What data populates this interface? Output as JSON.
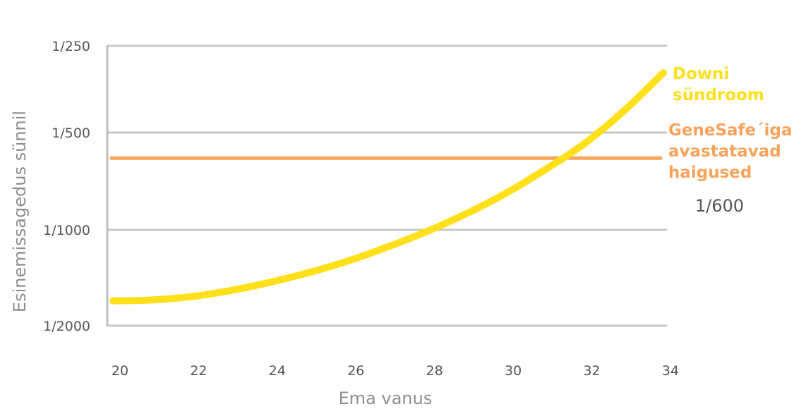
{
  "chart_data": {
    "type": "line",
    "title": "",
    "xlabel": "Ema vanus",
    "ylabel": "Esinemissagedus sünnil",
    "x_ticks": [
      "20",
      "22",
      "24",
      "26",
      "28",
      "30",
      "32",
      "34"
    ],
    "y_ticks": [
      "1/250",
      "1/500",
      "1/1000",
      "1/2000"
    ],
    "y_scale": "reciprocal",
    "y_tick_values": [
      250,
      500,
      1000,
      2000
    ],
    "xlim": [
      20,
      34
    ],
    "ylim": [
      2000,
      250
    ],
    "grid": true,
    "series": [
      {
        "name": "Downi sündroom",
        "color": "#ffe01a",
        "x": [
          20,
          21,
          22,
          23,
          24,
          25,
          26,
          27,
          28,
          29,
          30,
          31,
          32,
          33,
          34
        ],
        "y": [
          1670,
          1660,
          1620,
          1550,
          1460,
          1360,
          1250,
          1130,
          1010,
          890,
          770,
          650,
          540,
          420,
          310
        ]
      },
      {
        "name": "GeneSafe´iga avastatavad haigused",
        "color": "#f7a35c",
        "x": [
          20,
          34
        ],
        "y": [
          600,
          600
        ]
      }
    ],
    "annotations": [
      {
        "text": "1/600",
        "series": "GeneSafe´iga avastatavad haigused"
      }
    ]
  },
  "colors": {
    "grid": "#c8c8c8",
    "axis": "#bdbdbd",
    "tick_text": "#555555",
    "axis_label": "#8e8e8e"
  }
}
